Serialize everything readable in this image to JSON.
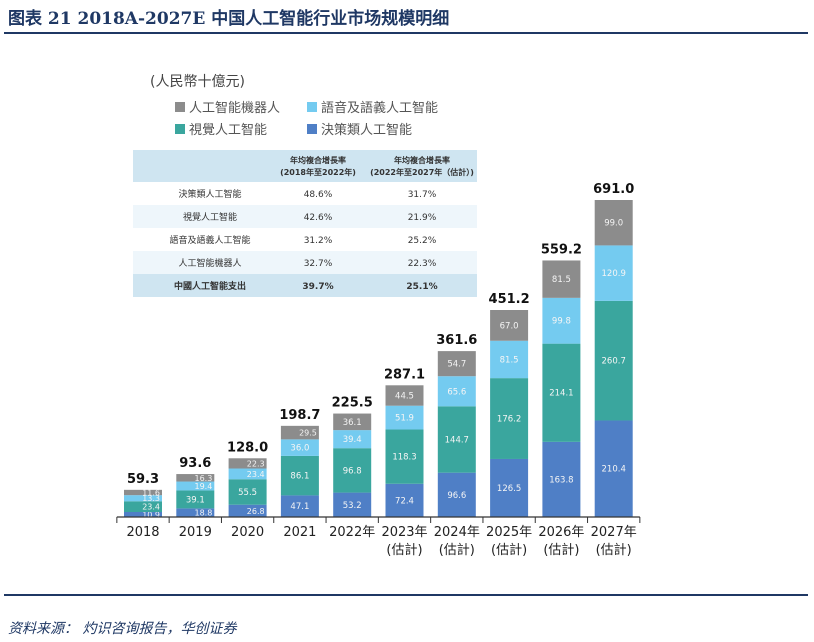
{
  "header": {
    "title": "图表 21   2018A-2027E 中国人工智能行业市场规模明细"
  },
  "footer": {
    "source": "资料来源：  灼识咨询报告，华创证券"
  },
  "colors": {
    "machine": "#8c8c8c",
    "voice": "#74cbf0",
    "vision": "#3aa69e",
    "decision": "#4f7fc6",
    "table_header": "#cfe5f1",
    "table_alt": "#eef6fb",
    "axis": "#333333"
  },
  "chart_data": {
    "type": "bar",
    "stacked": true,
    "unit_label": "(人民幣十億元)",
    "categories": [
      "2018",
      "2019",
      "2020",
      "2021",
      "2022年",
      "2023年",
      "2024年",
      "2025年",
      "2026年",
      "2027年"
    ],
    "category_sublabels": [
      "",
      "",
      "",
      "",
      "",
      "(估計)",
      "(估計)",
      "(估計)",
      "(估計)",
      "(估計)"
    ],
    "series": [
      {
        "name": "決策類人工智能",
        "color_key": "decision",
        "values": [
          10.9,
          18.8,
          26.8,
          47.1,
          53.2,
          72.4,
          96.6,
          126.5,
          163.8,
          210.4
        ]
      },
      {
        "name": "視覺人工智能",
        "color_key": "vision",
        "values": [
          23.4,
          39.1,
          55.5,
          86.1,
          96.8,
          118.3,
          144.7,
          176.2,
          214.1,
          260.7
        ]
      },
      {
        "name": "語音及語義人工智能",
        "color_key": "voice",
        "values": [
          13.3,
          19.4,
          23.4,
          36.0,
          39.4,
          51.9,
          65.6,
          81.5,
          99.8,
          120.9
        ]
      },
      {
        "name": "人工智能機器人",
        "color_key": "machine",
        "values": [
          11.6,
          16.3,
          22.3,
          29.5,
          36.1,
          44.5,
          54.7,
          67.0,
          81.5,
          99.0
        ]
      }
    ],
    "totals": [
      "59.3",
      "93.6",
      "128.0",
      "198.7",
      "225.5",
      "287.1",
      "361.6",
      "451.2",
      "559.2",
      "691.0"
    ],
    "segment_labels": [
      [
        "10.9",
        "23.4",
        "13.3",
        "11.6"
      ],
      [
        "18.8",
        "39.1",
        "19.4",
        "16.3"
      ],
      [
        "26.8",
        "55.5",
        "23.4",
        "22.3"
      ],
      [
        "47.1",
        "86.1",
        "36.0",
        "29.5"
      ],
      [
        "53.2",
        "96.8",
        "39.4",
        "36.1"
      ],
      [
        "72.4",
        "118.3",
        "51.9",
        "44.5"
      ],
      [
        "96.6",
        "144.7",
        "65.6",
        "54.7"
      ],
      [
        "126.5",
        "176.2",
        "81.5",
        "67.0"
      ],
      [
        "163.8",
        "214.1",
        "99.8",
        "81.5"
      ],
      [
        "210.4",
        "260.7",
        "120.9",
        "99.0"
      ]
    ],
    "legend": [
      {
        "label": "人工智能機器人",
        "color_key": "machine"
      },
      {
        "label": "語音及語義人工智能",
        "color_key": "voice"
      },
      {
        "label": "視覺人工智能",
        "color_key": "vision"
      },
      {
        "label": "決策類人工智能",
        "color_key": "decision"
      }
    ],
    "legend_position": "top-left",
    "cagr_table": {
      "headers": [
        [
          "年均複合增長率",
          "(2018年至2022年)"
        ],
        [
          "年均複合增長率",
          "(2022年至2027年（估計）)"
        ]
      ],
      "rows": [
        {
          "label": "決策類人工智能",
          "v1": "48.6%",
          "v2": "31.7%"
        },
        {
          "label": "視覺人工智能",
          "v1": "42.6%",
          "v2": "21.9%"
        },
        {
          "label": "語音及語義人工智能",
          "v1": "31.2%",
          "v2": "25.2%"
        },
        {
          "label": "人工智能機器人",
          "v1": "32.7%",
          "v2": "22.3%"
        },
        {
          "label": "中國人工智能支出",
          "v1": "39.7%",
          "v2": "25.1%",
          "bold": true
        }
      ]
    },
    "ylim": [
      0,
      720
    ],
    "grid": false
  }
}
